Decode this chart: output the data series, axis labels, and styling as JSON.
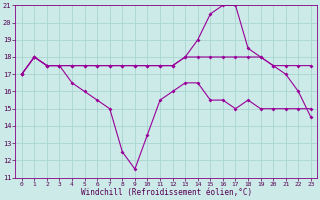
{
  "xlabel": "Windchill (Refroidissement éolien,°C)",
  "background_color": "#cceae7",
  "grid_color": "#aad4d0",
  "line_color": "#990099",
  "xlim": [
    -0.5,
    23.5
  ],
  "ylim": [
    11,
    21
  ],
  "yticks": [
    11,
    12,
    13,
    14,
    15,
    16,
    17,
    18,
    19,
    20,
    21
  ],
  "xticks": [
    0,
    1,
    2,
    3,
    4,
    5,
    6,
    7,
    8,
    9,
    10,
    11,
    12,
    13,
    14,
    15,
    16,
    17,
    18,
    19,
    20,
    21,
    22,
    23
  ],
  "line1_x": [
    0,
    1,
    2,
    3,
    4,
    5,
    6,
    7,
    8,
    9,
    10,
    11,
    12,
    13,
    14,
    15,
    16,
    17,
    18,
    19,
    20,
    21,
    22,
    23
  ],
  "line1_y": [
    17,
    18,
    17.5,
    17.5,
    16.5,
    16,
    15.5,
    15,
    12.5,
    11.5,
    13.5,
    15.5,
    16,
    16.5,
    16.5,
    15.5,
    15.5,
    15,
    15.5,
    15,
    15,
    15,
    15,
    15
  ],
  "line2_x": [
    0,
    1,
    2,
    3,
    4,
    5,
    6,
    7,
    8,
    9,
    10,
    11,
    12,
    13,
    14,
    15,
    16,
    17,
    18,
    19,
    20,
    21,
    22,
    23
  ],
  "line2_y": [
    17,
    18,
    17.5,
    17.5,
    17.5,
    17.5,
    17.5,
    17.5,
    17.5,
    17.5,
    17.5,
    17.5,
    17.5,
    18,
    19,
    20.5,
    21,
    21,
    18.5,
    18,
    17.5,
    17,
    16,
    14.5
  ],
  "line3_x": [
    0,
    1,
    2,
    3,
    4,
    5,
    6,
    7,
    8,
    9,
    10,
    11,
    12,
    13,
    14,
    15,
    16,
    17,
    18,
    19,
    20,
    21,
    22,
    23
  ],
  "line3_y": [
    17,
    18,
    17.5,
    17.5,
    17.5,
    17.5,
    17.5,
    17.5,
    17.5,
    17.5,
    17.5,
    17.5,
    17.5,
    18,
    18,
    18,
    18,
    18,
    18,
    18,
    17.5,
    17.5,
    17.5,
    17.5
  ]
}
